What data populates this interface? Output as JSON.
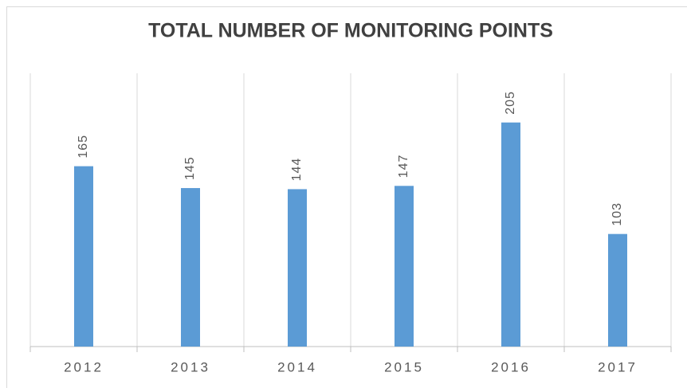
{
  "chart_data": {
    "type": "bar",
    "title": "TOTAL NUMBER OF MONITORING POINTS",
    "categories": [
      "2012",
      "2013",
      "2014",
      "2015",
      "2016",
      "2017"
    ],
    "values": [
      165,
      145,
      144,
      147,
      205,
      103
    ],
    "color": "#5b9bd5",
    "ylim": [
      0,
      250
    ],
    "grid": false
  }
}
